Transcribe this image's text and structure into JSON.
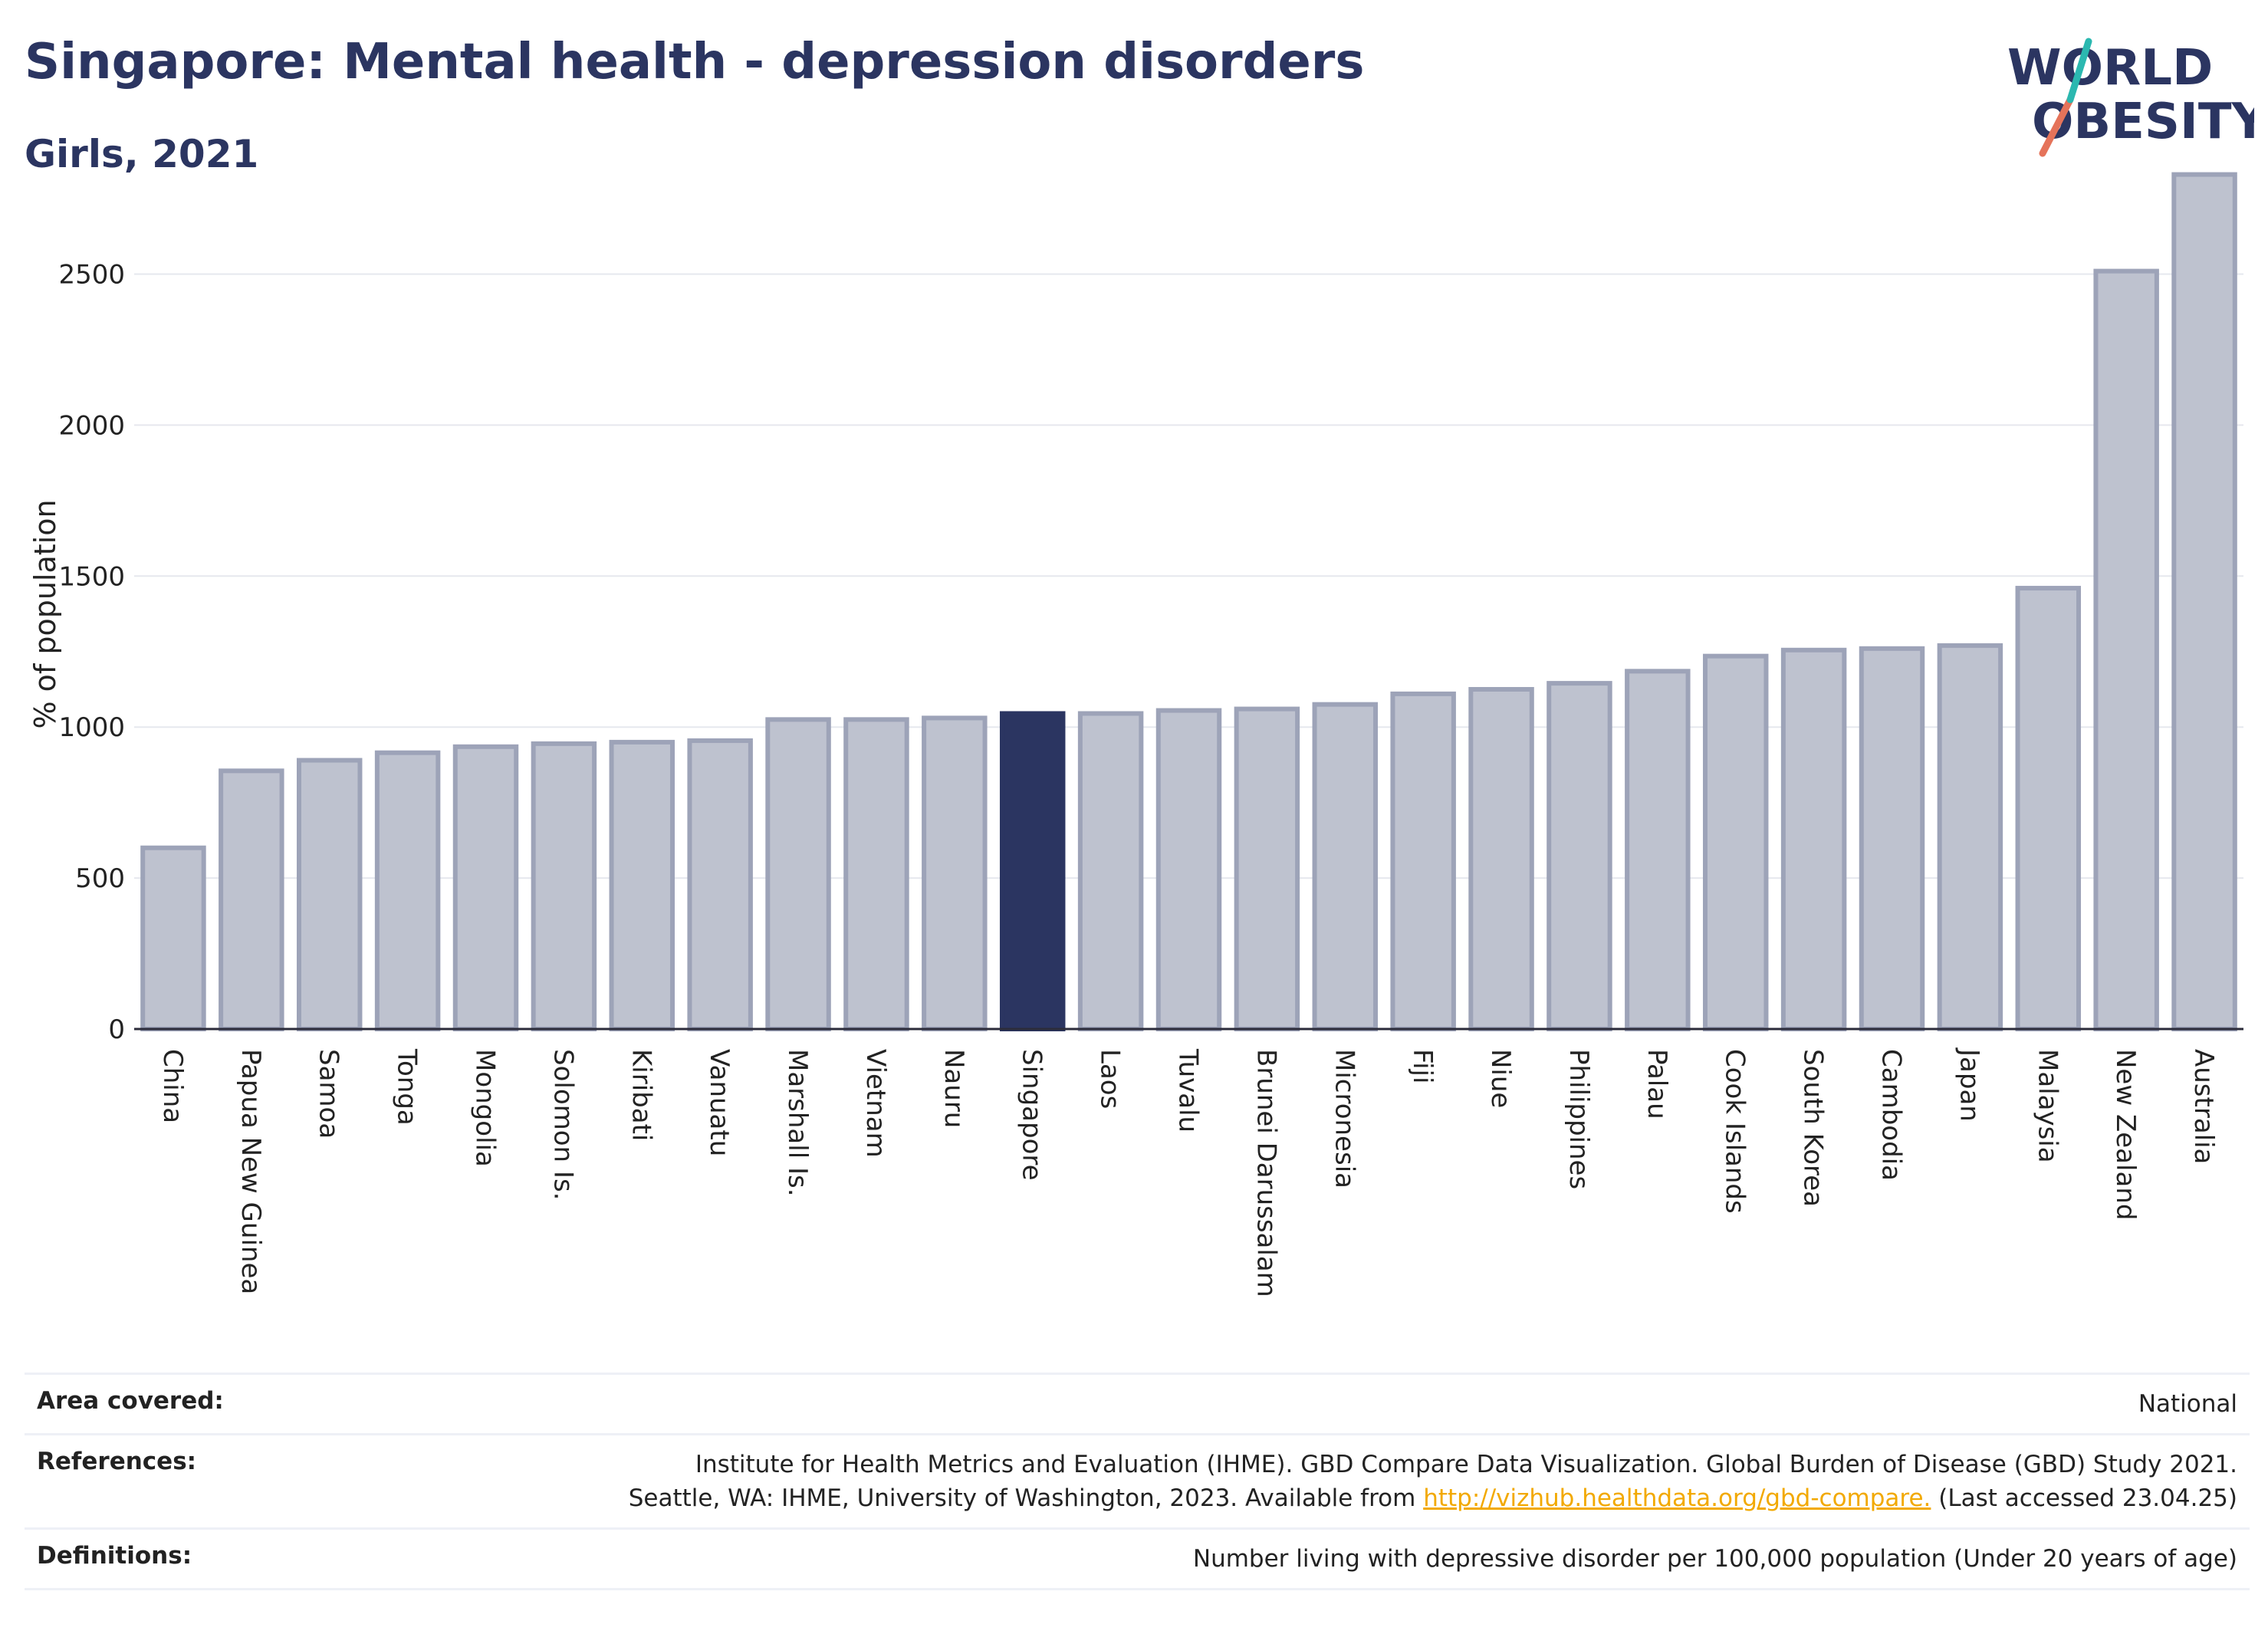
{
  "header": {
    "title": "Singapore: Mental health - depression disorders",
    "subtitle": "Girls, 2021"
  },
  "logo": {
    "line1": "WORLD",
    "line2": "OBESITY"
  },
  "chart_data": {
    "type": "bar",
    "ylabel": "% of population",
    "ylim": [
      0,
      2900
    ],
    "yticks": [
      0,
      500,
      1000,
      1500,
      2000,
      2500
    ],
    "grid": true,
    "highlight": "Singapore",
    "colors": {
      "bar": "#bec2cf",
      "bar_edge": "#9da3b8",
      "highlight": "#2b3561"
    },
    "categories": [
      "China",
      "Papua New Guinea",
      "Samoa",
      "Tonga",
      "Mongolia",
      "Solomon Is.",
      "Kiribati",
      "Vanuatu",
      "Marshall Is.",
      "Vietnam",
      "Nauru",
      "Singapore",
      "Laos",
      "Tuvalu",
      "Brunei Darussalam",
      "Micronesia",
      "Fiji",
      "Niue",
      "Philippines",
      "Palau",
      "Cook Islands",
      "South Korea",
      "Cambodia",
      "Japan",
      "Malaysia",
      "New Zealand",
      "Australia"
    ],
    "values": [
      600,
      855,
      890,
      915,
      935,
      945,
      950,
      955,
      1025,
      1025,
      1030,
      1045,
      1045,
      1055,
      1060,
      1075,
      1110,
      1125,
      1145,
      1185,
      1235,
      1255,
      1260,
      1270,
      1460,
      2510,
      2830
    ]
  },
  "footer": {
    "area_label": "Area covered:",
    "area_value": "National",
    "references_label": "References:",
    "references_line1": "Institute for Health Metrics and Evaluation (IHME). GBD Compare Data Visualization. Global Burden of Disease (GBD) Study 2021.",
    "references_line2_pre": "Seattle, WA: IHME, University of Washington, 2023. Available from ",
    "references_link": "http://vizhub.healthdata.org/gbd-compare.",
    "references_line2_post": " (Last accessed 23.04.25)",
    "definitions_label": "Definitions:",
    "definitions_value": "Number living with depressive disorder per 100,000 population (Under 20 years of age)"
  }
}
